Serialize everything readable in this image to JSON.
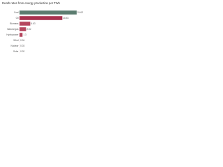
{
  "chart_data": {
    "type": "bar",
    "orientation": "horizontal",
    "title": "Death rates from energy production per TWh",
    "categories": [
      "Coal",
      "Oil",
      "Biomass",
      "Natural gas",
      "Hydropower",
      "Wind",
      "Nuclear",
      "Solar"
    ],
    "values": [
      24.62,
      18.43,
      4.63,
      2.82,
      1.3,
      0.04,
      0.03,
      0.02
    ],
    "colors": [
      "#5b7c6f",
      "#a8324e",
      "#b5465e",
      "#b5465e",
      "#b5465e",
      "#b5465e",
      "#b5465e",
      "#b5465e"
    ],
    "xlim": [
      0,
      24.62
    ]
  }
}
